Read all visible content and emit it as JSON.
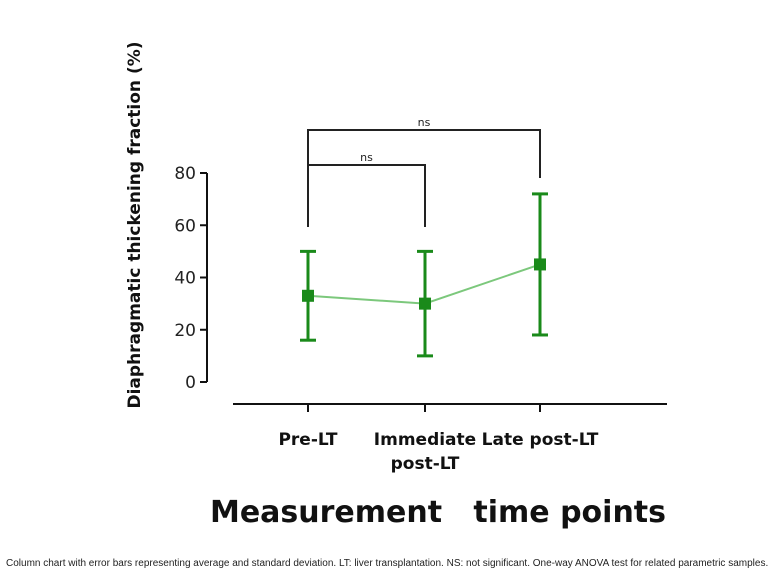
{
  "chart_data": {
    "type": "line",
    "categories": [
      {
        "line1": "Pre-LT",
        "line2": ""
      },
      {
        "line1": "Immediate",
        "line2": "post-LT"
      },
      {
        "line1": "Late post-LT",
        "line2": ""
      }
    ],
    "series": [
      {
        "name": "Diaphragmatic thickening fraction",
        "values": [
          33,
          30,
          45
        ],
        "sd": [
          17,
          20,
          27
        ],
        "color": "#1a8a1a",
        "line_color": "#7cc87c"
      }
    ],
    "title": "",
    "xlabel": "Measurement   time points",
    "ylabel": "Diaphragmatic thickening fraction (%)",
    "ylim": [
      0,
      80
    ],
    "yticks": [
      0,
      20,
      40,
      60,
      80
    ],
    "grid": false,
    "significance": [
      {
        "from": 0,
        "to": 1,
        "label": "ns"
      },
      {
        "from": 0,
        "to": 2,
        "label": "ns"
      }
    ]
  },
  "caption": "Column chart with error bars representing average and standard deviation. LT: liver transplantation. NS: not significant. One-way ANOVA test for related parametric samples."
}
